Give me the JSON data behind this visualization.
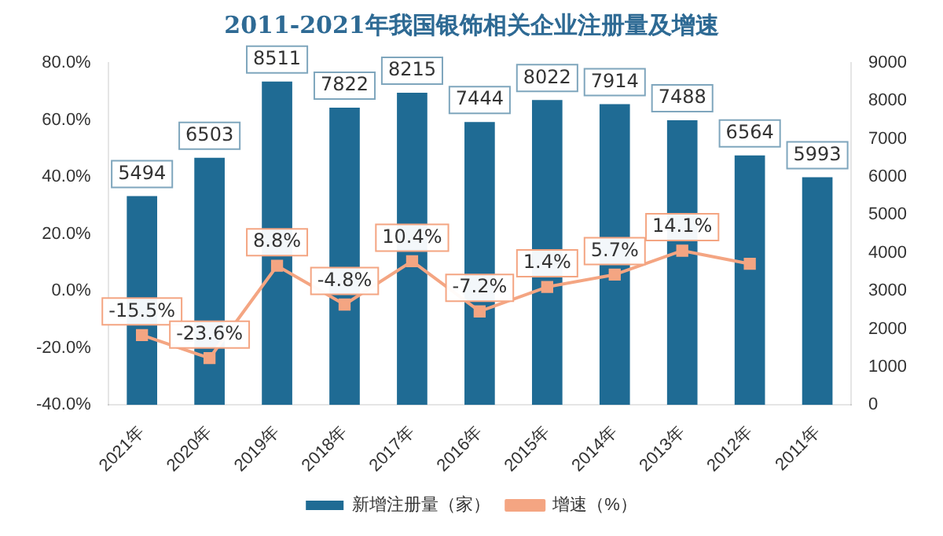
{
  "chart_data": {
    "type": "bar",
    "title": "2011-2021年我国银饰相关企业注册量及增速",
    "categories": [
      "2021年",
      "2020年",
      "2019年",
      "2018年",
      "2017年",
      "2016年",
      "2015年",
      "2014年",
      "2013年",
      "2012年",
      "2011年"
    ],
    "series": [
      {
        "name": "新增注册量（家）",
        "axis": "y2",
        "color": "#1f6b94",
        "values": [
          5494,
          6503,
          8511,
          7822,
          8215,
          7444,
          8022,
          7914,
          7488,
          6564,
          5993
        ],
        "value_labels": [
          "5494",
          "6503",
          "8511",
          "7822",
          "8215",
          "7444",
          "8022",
          "7914",
          "7488",
          "6564",
          "5993"
        ]
      },
      {
        "name": "增速（%）",
        "type": "line",
        "axis": "y",
        "color": "#f4a582",
        "marker": "square",
        "values": [
          -15.5,
          -23.6,
          8.8,
          -4.8,
          10.4,
          -7.2,
          1.4,
          5.7,
          14.1,
          9.5,
          null
        ],
        "value_labels": [
          "-15.5%",
          "-23.6%",
          "8.8%",
          "-4.8%",
          "10.4%",
          "-7.2%",
          "1.4%",
          "5.7%",
          "14.1%",
          null,
          null
        ]
      }
    ],
    "ylim": [
      -40,
      80
    ],
    "yticks": [
      {
        "value": -40,
        "label": "-40.0%"
      },
      {
        "value": -20,
        "label": "-20.0%"
      },
      {
        "value": 0,
        "label": "0.0%"
      },
      {
        "value": 20,
        "label": "20.0%"
      },
      {
        "value": 40,
        "label": "40.0%"
      },
      {
        "value": 60,
        "label": "60.0%"
      },
      {
        "value": 80,
        "label": "80.0%"
      }
    ],
    "y2lim": [
      0,
      9000
    ],
    "y2ticks": [
      0,
      1000,
      2000,
      3000,
      4000,
      5000,
      6000,
      7000,
      8000,
      9000
    ],
    "grid": false,
    "legend": "bottom"
  }
}
